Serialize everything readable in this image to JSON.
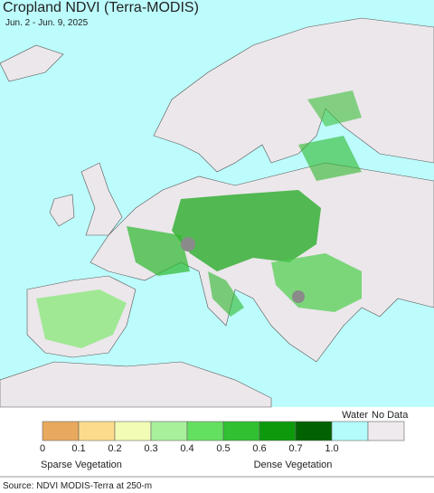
{
  "header": {
    "title": "Cropland NDVI (Terra-MODIS)",
    "subtitle": "Jun. 2 - Jun. 9, 2025"
  },
  "legend": {
    "colors": [
      "#e8a95e",
      "#fcdc8c",
      "#f2fcb4",
      "#a8f09a",
      "#64e060",
      "#30c030",
      "#0c9a0c",
      "#006200",
      "#b4fcfc",
      "#eeeaee"
    ],
    "ticks": [
      "0",
      "0.1",
      "0.2",
      "0.3",
      "0.4",
      "0.5",
      "0.6",
      "0.7",
      "1.0"
    ],
    "water": "Water",
    "no_data": "No Data",
    "sparse": "Sparse Vegetation",
    "dense": "Dense Vegetation"
  },
  "source": "Source: NDVI MODIS-Terra at 250-m"
}
